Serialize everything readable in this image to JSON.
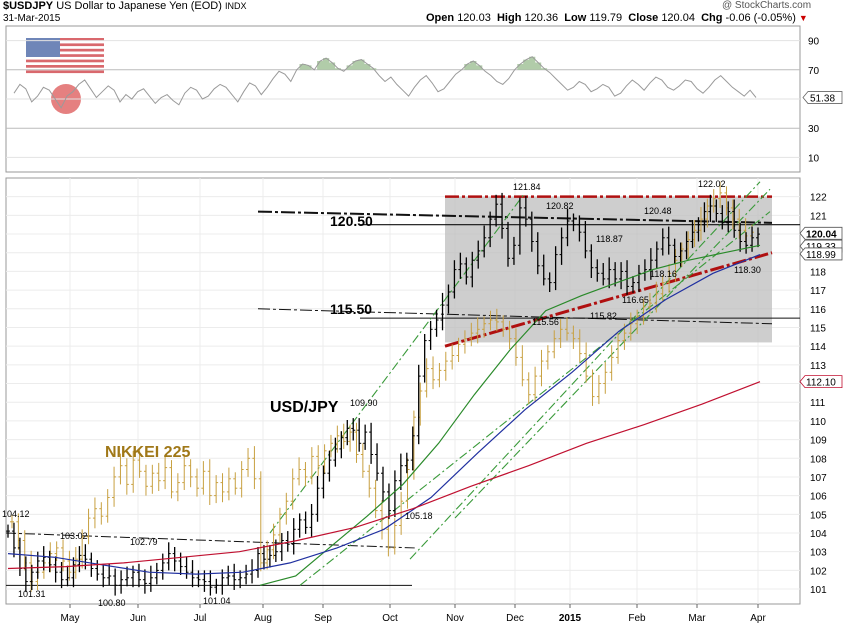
{
  "header": {
    "symbol": "$USDJPY",
    "name": "US Dollar to Japanese Yen (EOD)",
    "exchange": "INDX",
    "date": "31-Mar-2015",
    "watermark": "@ StockCharts.com",
    "open_label": "Open",
    "open": "120.03",
    "high_label": "High",
    "high": "120.36",
    "low_label": "Low",
    "low": "119.79",
    "close_label": "Close",
    "close": "120.04",
    "chg_label": "Chg",
    "chg": "-0.06 (-0.05%)"
  },
  "colors": {
    "usdjpy_bars": "#000000",
    "nikkei_bars": "#c8a040",
    "ma_short": "#2a8a2a",
    "ma_mid": "#2030a0",
    "ma_long": "#c01030",
    "channel_fill": "#bdbdbd",
    "channel_border": "#b01010",
    "rsi_line": "#9a9a9a",
    "rsi_fill": "#a9c7a0",
    "trend_green": "#3a9a3a",
    "label_text": "#a07818"
  },
  "chart_data": [
    {
      "type": "line",
      "panel": "indicator",
      "yticks": [
        10,
        30,
        50,
        70,
        90
      ],
      "ylim": [
        0,
        100
      ],
      "last_value_label": "51.38",
      "series": [
        {
          "values": [
            54,
            60,
            57,
            48,
            52,
            58,
            56,
            50,
            44,
            52,
            55,
            60,
            63,
            57,
            51,
            55,
            59,
            56,
            48,
            53,
            50,
            55,
            57,
            52,
            47,
            51,
            53,
            49,
            46,
            54,
            58,
            56,
            50,
            52,
            57,
            60,
            58,
            53,
            48,
            55,
            61,
            59,
            53,
            58,
            64,
            69,
            67,
            62,
            70,
            74,
            73,
            70,
            76,
            78,
            75,
            71,
            69,
            73,
            76,
            77,
            74,
            71,
            66,
            62,
            65,
            60,
            56,
            52,
            58,
            63,
            66,
            61,
            55,
            57,
            62,
            67,
            70,
            74,
            76,
            73,
            69,
            66,
            62,
            60,
            64,
            70,
            74,
            77,
            79,
            75,
            71,
            68,
            64,
            60,
            56,
            58,
            62,
            60,
            55,
            57,
            60,
            58,
            52,
            54,
            59,
            63,
            60,
            56,
            61,
            65,
            63,
            58,
            56,
            59,
            63,
            62,
            57,
            54,
            58,
            63,
            66,
            62,
            58,
            55,
            52,
            56,
            51
          ]
        }
      ]
    },
    {
      "type": "line",
      "panel": "price",
      "ylim": [
        100.2,
        123
      ],
      "yticks": [
        101,
        102,
        103,
        104,
        105,
        106,
        107,
        108,
        109,
        110,
        111,
        112,
        113,
        114,
        115,
        116,
        117,
        118,
        119,
        120,
        121,
        122
      ],
      "xticks": [
        "May",
        "Jun",
        "Jul",
        "Aug",
        "Sep",
        "Oct",
        "Nov",
        "Dec",
        "2015",
        "Feb",
        "Mar",
        "Apr"
      ],
      "right_labels": [
        "120.04",
        "119.33",
        "118.99",
        "112.10"
      ],
      "series": [
        {
          "name": "USD/JPY",
          "values": [
            104.1,
            103.2,
            102.1,
            101.4,
            101.9,
            102.5,
            102.7,
            102.3,
            101.9,
            101.5,
            101.6,
            102.3,
            102.8,
            102.6,
            102.1,
            101.8,
            101.6,
            101.7,
            101.2,
            101.5,
            101.6,
            101.9,
            101.5,
            101.3,
            101.6,
            102.0,
            102.4,
            102.9,
            102.5,
            102.2,
            101.9,
            101.6,
            101.5,
            101.4,
            101.1,
            101.2,
            101.6,
            101.7,
            101.5,
            101.6,
            101.8,
            102.0,
            102.9,
            102.6,
            102.8,
            103.0,
            103.6,
            103.4,
            104.2,
            104.7,
            104.3,
            105.0,
            106.4,
            107.2,
            107.9,
            108.5,
            109.1,
            109.6,
            109.5,
            108.8,
            109.4,
            108.2,
            107.2,
            106.2,
            105.2,
            106.8,
            107.6,
            107.9,
            109.2,
            112.4,
            114.3,
            114.9,
            115.4,
            116.2,
            116.9,
            118.1,
            118.4,
            117.7,
            118.6,
            119.1,
            119.8,
            120.8,
            121.6,
            120.3,
            118.7,
            119.4,
            121.4,
            120.8,
            119.6,
            118.3,
            117.6,
            117.4,
            118.9,
            119.8,
            120.7,
            120.5,
            120.1,
            119.1,
            118.2,
            117.9,
            117.6,
            118.1,
            117.6,
            118.0,
            117.2,
            117.4,
            117.9,
            118.1,
            118.6,
            119.2,
            119.8,
            119.4,
            118.8,
            119.1,
            119.6,
            120.1,
            120.5,
            121.2,
            121.5,
            121.1,
            120.6,
            121.2,
            120.2,
            119.6,
            119.4,
            119.8,
            120.0
          ]
        },
        {
          "name": "NIKKEI 225",
          "values": [
            104.6,
            103.6,
            102.4,
            101.4,
            101.9,
            102.4,
            102.9,
            103.2,
            102.5,
            101.9,
            102.6,
            103.8,
            104.8,
            105.3,
            104.9,
            105.9,
            107.0,
            107.6,
            106.6,
            107.9,
            107.3,
            106.5,
            107.2,
            106.8,
            107.5,
            106.2,
            106.7,
            107.6,
            107.0,
            106.4,
            107.3,
            106.0,
            106.7,
            106.2,
            106.9,
            106.4,
            107.4,
            108.0,
            106.9,
            102.4,
            103.1,
            103.9,
            105.0,
            105.7,
            106.9,
            107.4,
            107.0,
            108.1,
            107.6,
            108.4,
            108.8,
            109.2,
            108.9,
            109.4,
            108.2,
            107.3,
            106.4,
            105.2,
            104.2,
            103.2,
            104.4,
            105.7,
            107.4,
            110.2,
            111.6,
            112.8,
            112.2,
            112.7,
            113.2,
            113.5,
            114.1,
            114.4,
            114.7,
            114.9,
            115.2,
            115.4,
            115.3,
            114.9,
            114.4,
            113.4,
            112.2,
            111.4,
            112.4,
            113.2,
            113.7,
            114.4,
            114.9,
            114.7,
            114.4,
            113.6,
            112.4,
            111.3,
            112.0,
            112.6,
            113.4,
            114.3,
            114.7,
            115.2,
            115.6,
            116.1,
            116.3,
            116.8,
            117.4,
            117.9,
            118.6,
            119.2,
            119.7,
            120.2,
            120.8,
            121.5,
            121.9,
            122.2,
            121.4,
            120.8,
            120.2,
            119.9,
            120.1
          ]
        },
        {
          "name": "",
          "values": [
            101.2,
            101.7,
            103.3,
            104.9,
            106.6,
            108.8,
            111.4,
            113.8,
            115.9,
            116.7,
            117.4,
            118.1,
            118.6,
            119.0,
            119.4
          ]
        },
        {
          "name": "",
          "values": [
            102.9,
            102.7,
            102.3,
            101.9,
            101.8,
            101.9,
            102.4,
            103.2,
            104.2,
            105.9,
            108.3,
            110.6,
            112.6,
            114.8,
            116.5,
            117.9,
            118.9
          ]
        },
        {
          "name": "",
          "values": [
            102.1,
            102.2,
            102.4,
            102.7,
            103.0,
            103.6,
            104.3,
            105.3,
            106.5,
            107.6,
            108.8,
            109.8,
            110.9,
            112.1
          ]
        }
      ]
    }
  ],
  "annotations": {
    "title_usdjpy": "USD/JPY",
    "title_nikkei": "NIKKEI 225",
    "level_upper": "120.50",
    "level_lower": "115.50",
    "points": [
      "104.12",
      "103.02",
      "102.79",
      "101.31",
      "100.80",
      "101.04",
      "109.90",
      "105.18",
      "121.84",
      "120.82",
      "115.56",
      "118.87",
      "120.48",
      "118.16",
      "116.65",
      "115.82",
      "122.02",
      "118.30"
    ]
  }
}
